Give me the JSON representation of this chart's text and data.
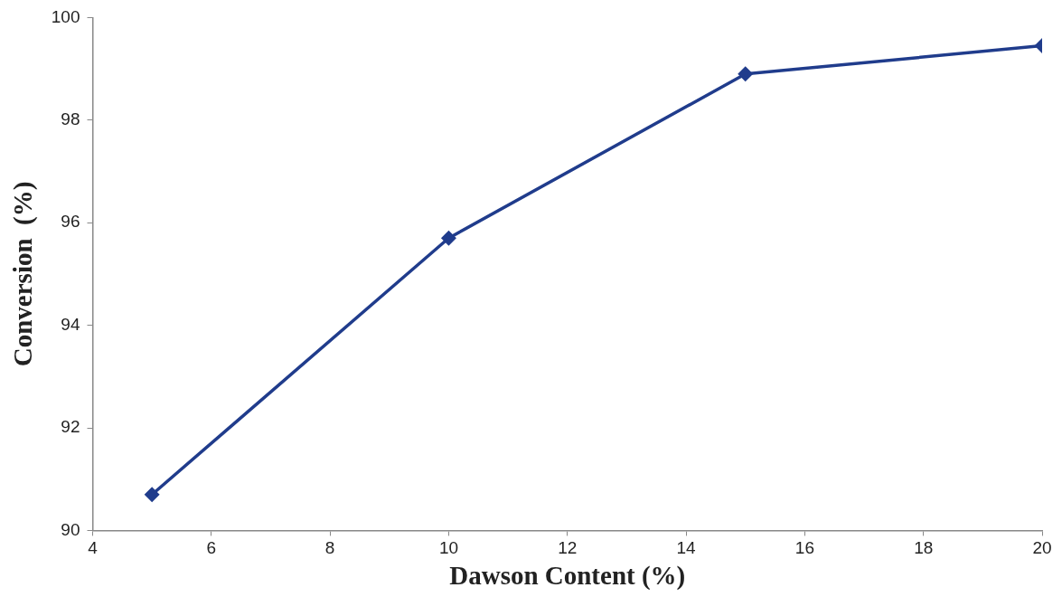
{
  "chart_data": {
    "type": "line",
    "xlabel": "Dawson Content (%)",
    "ylabel": "Conversion  (%)",
    "x": [
      5,
      10,
      15,
      20
    ],
    "series": [
      {
        "color": "#203c8c",
        "values": [
          90.7,
          95.7,
          98.9,
          99.45
        ]
      }
    ],
    "xlim": [
      4,
      20
    ],
    "xticks": [
      4,
      6,
      8,
      10,
      12,
      14,
      16,
      18,
      20
    ],
    "ylim": [
      90,
      100
    ],
    "yticks": [
      90,
      92,
      94,
      96,
      98,
      100
    ],
    "grid": false,
    "legend": false,
    "marker": "diamond",
    "line_style": "solid"
  }
}
